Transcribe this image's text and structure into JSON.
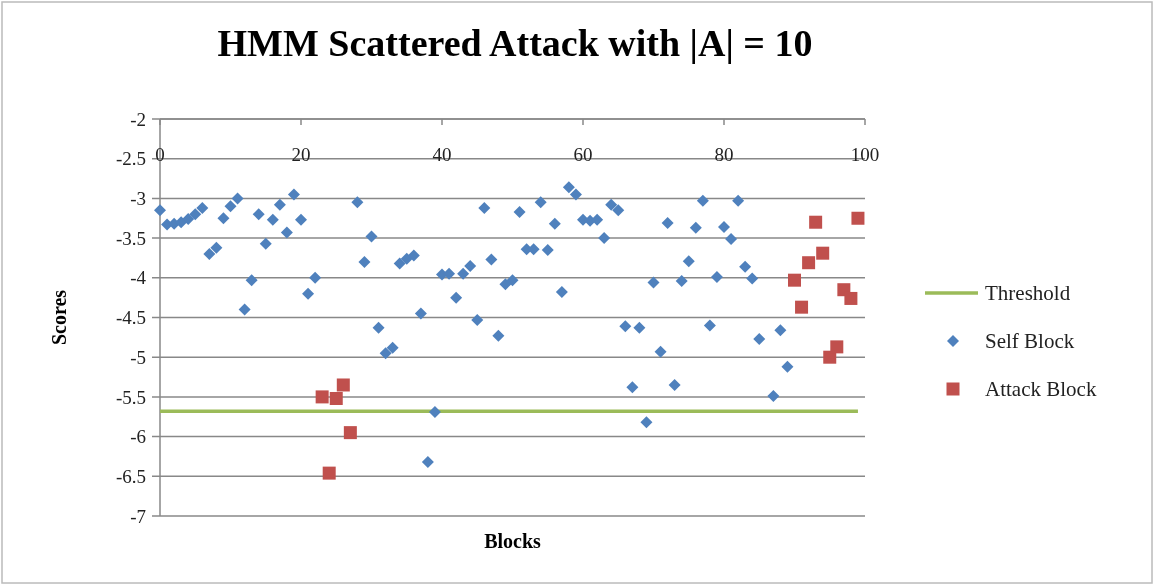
{
  "chart_data": {
    "type": "scatter",
    "title": "HMM Scattered Attack with |A| = 10",
    "xlabel": "Blocks",
    "ylabel": "Scores",
    "xlim": [
      0,
      100
    ],
    "xticks": [
      0,
      20,
      40,
      60,
      80,
      100
    ],
    "ylim": [
      -7,
      -2
    ],
    "yticks": [
      -7,
      -6.5,
      -6,
      -5.5,
      -5,
      -4.5,
      -4,
      -3.5,
      -3,
      -2.5,
      -2
    ],
    "grid": "y",
    "legend": "right",
    "series": [
      {
        "name": "Threshold",
        "type": "line",
        "color": "#9bbb59",
        "marker": "none",
        "line_style": "solid",
        "x": [
          0,
          99
        ],
        "values": [
          -5.68,
          -5.68
        ]
      },
      {
        "name": "Self Block",
        "color": "#4f81bd",
        "marker": "diamond",
        "x": [
          0,
          1,
          2,
          3,
          4,
          5,
          6,
          7,
          8,
          9,
          10,
          11,
          12,
          13,
          14,
          15,
          16,
          17,
          18,
          19,
          20,
          21,
          22,
          28,
          29,
          30,
          31,
          32,
          33,
          34,
          35,
          36,
          37,
          38,
          39,
          40,
          41,
          42,
          43,
          44,
          45,
          46,
          47,
          48,
          49,
          50,
          51,
          52,
          53,
          54,
          55,
          56,
          57,
          58,
          59,
          60,
          61,
          62,
          63,
          64,
          65,
          66,
          67,
          68,
          69,
          70,
          71,
          72,
          73,
          74,
          75,
          76,
          77,
          78,
          79,
          80,
          81,
          82,
          83,
          84,
          85,
          87,
          88,
          89
        ],
        "values": [
          -3.15,
          -3.33,
          -3.32,
          -3.3,
          -3.26,
          -3.2,
          -3.12,
          -3.7,
          -3.62,
          -3.25,
          -3.1,
          -3.0,
          -4.4,
          -4.03,
          -3.2,
          -3.57,
          -3.27,
          -3.08,
          -3.43,
          -2.95,
          -3.27,
          -4.2,
          -4.0,
          -3.05,
          -3.8,
          -3.48,
          -4.63,
          -4.95,
          -4.88,
          -3.82,
          -3.76,
          -3.72,
          -4.45,
          -6.32,
          -5.69,
          -3.96,
          -3.95,
          -4.25,
          -3.95,
          -3.85,
          -4.53,
          -3.12,
          -3.77,
          -4.73,
          -4.08,
          -4.03,
          -3.17,
          -3.64,
          -3.64,
          -3.05,
          -3.65,
          -3.32,
          -4.18,
          -2.86,
          -2.95,
          -3.27,
          -3.28,
          -3.27,
          -3.5,
          -3.08,
          -3.15,
          -4.61,
          -5.38,
          -4.63,
          -5.82,
          -4.06,
          -4.93,
          -3.31,
          -5.35,
          -4.04,
          -3.79,
          -3.37,
          -3.03,
          -4.6,
          -3.99,
          -3.36,
          -3.51,
          -3.03,
          -3.86,
          -4.01,
          -4.77,
          -5.49,
          -4.66,
          -5.12
        ]
      },
      {
        "name": "Attack Block",
        "color": "#c0504d",
        "marker": "square",
        "x": [
          23,
          24,
          25,
          26,
          27,
          90,
          91,
          92,
          93,
          94,
          95,
          96,
          97,
          98,
          99
        ],
        "values": [
          -5.5,
          -6.46,
          -5.52,
          -5.35,
          -5.95,
          -4.03,
          -4.37,
          -3.81,
          -3.3,
          -3.69,
          -5.0,
          -4.87,
          -4.15,
          -4.26,
          -3.25
        ]
      }
    ]
  }
}
